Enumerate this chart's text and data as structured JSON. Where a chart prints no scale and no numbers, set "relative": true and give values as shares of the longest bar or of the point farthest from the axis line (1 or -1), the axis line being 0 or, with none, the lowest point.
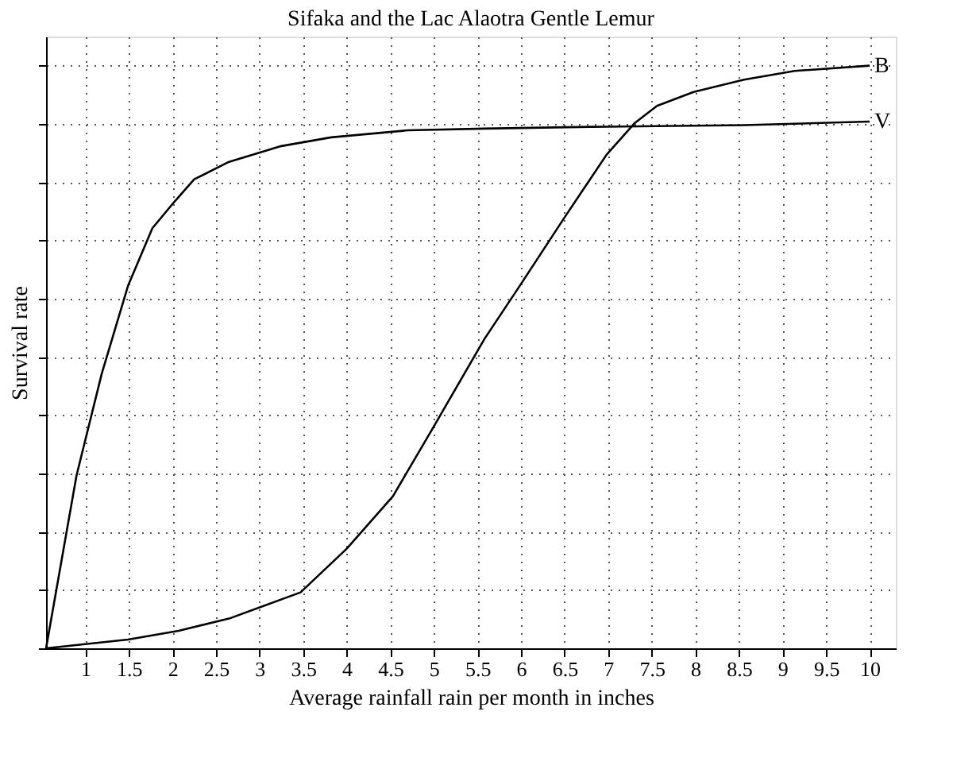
{
  "chart_data": {
    "type": "line",
    "title": "Sifaka and the Lac Alaotra Gentle Lemur",
    "xlabel": "Average rainfall rain per month in inches",
    "ylabel": "Survival rate",
    "relative": true,
    "xlim": [
      0.55,
      10.3
    ],
    "xticks": [
      1,
      1.5,
      2,
      2.5,
      3,
      3.5,
      4,
      4.5,
      5,
      5.5,
      6,
      6.5,
      7,
      7.5,
      8,
      8.5,
      9,
      9.5,
      10
    ],
    "grid": true,
    "line_style": "solid",
    "marker": "none",
    "series": [
      {
        "name": "B",
        "color": "#000000",
        "x": [
          0.55,
          1.49,
          2.07,
          2.65,
          3.47,
          4.0,
          4.53,
          5.0,
          5.58,
          5.98,
          6.51,
          6.98,
          7.3,
          7.56,
          7.98,
          8.56,
          9.14,
          10
        ],
        "values": [
          0,
          0.015,
          0.03,
          0.051,
          0.096,
          0.171,
          0.261,
          0.381,
          0.531,
          0.621,
          0.742,
          0.847,
          0.901,
          0.931,
          0.955,
          0.976,
          0.991,
          1.0
        ]
      },
      {
        "name": "V",
        "color": "#000000",
        "x": [
          0.55,
          0.9,
          1.19,
          1.49,
          1.77,
          2.02,
          2.25,
          2.65,
          3.25,
          3.82,
          4.7,
          5.58,
          6.8,
          8.56,
          10
        ],
        "values": [
          0,
          0.297,
          0.472,
          0.622,
          0.721,
          0.766,
          0.805,
          0.835,
          0.862,
          0.877,
          0.889,
          0.892,
          0.895,
          0.898,
          0.904
        ]
      }
    ]
  }
}
